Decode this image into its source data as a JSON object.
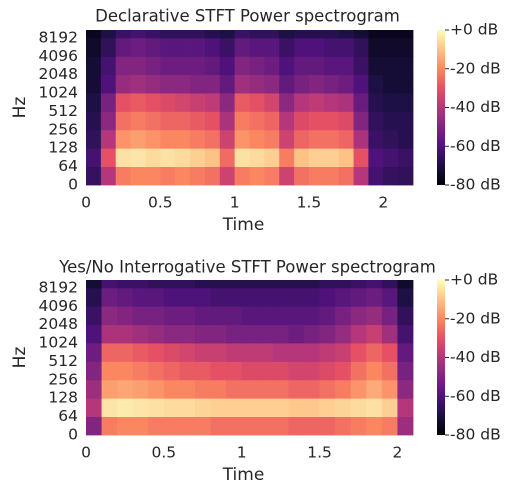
{
  "chart_data": [
    {
      "type": "spectrogram",
      "title": "Declarative STFT Power spectrogram",
      "xlabel": "Time",
      "ylabel": "Hz",
      "xlim": [
        0,
        2.2
      ],
      "xticks": [
        0,
        0.5,
        1,
        1.5,
        2
      ],
      "ylim": [
        0,
        11025
      ],
      "yticks": [
        0,
        64,
        128,
        256,
        512,
        1024,
        2048,
        4096,
        8192
      ],
      "yscale": "symlog",
      "linthresh": 64,
      "time_edges": [
        0,
        0.1,
        0.2,
        0.3,
        0.4,
        0.5,
        0.6,
        0.7,
        0.8,
        0.9,
        1,
        1.1,
        1.2,
        1.3,
        1.4,
        1.5,
        1.6,
        1.7,
        1.8,
        1.9,
        2,
        2.1,
        2.2
      ],
      "freq_edges": [
        0,
        64,
        128,
        256,
        512,
        1024,
        2048,
        4096,
        8192,
        11025
      ],
      "z": [
        [
          -65,
          -40,
          -22,
          -20,
          -20,
          -22,
          -20,
          -22,
          -24,
          -35,
          -22,
          -20,
          -22,
          -35,
          -24,
          -22,
          -22,
          -24,
          -40,
          -62,
          -65,
          -66
        ],
        [
          -62,
          -30,
          -5,
          -4,
          -6,
          -5,
          -6,
          -8,
          -10,
          -25,
          -5,
          -6,
          -8,
          -22,
          -10,
          -8,
          -8,
          -10,
          -30,
          -60,
          -62,
          -64
        ],
        [
          -66,
          -40,
          -18,
          -16,
          -18,
          -20,
          -20,
          -22,
          -24,
          -35,
          -18,
          -20,
          -22,
          -35,
          -26,
          -24,
          -24,
          -26,
          -42,
          -64,
          -66,
          -68
        ],
        [
          -68,
          -48,
          -24,
          -22,
          -24,
          -26,
          -26,
          -28,
          -30,
          -42,
          -22,
          -24,
          -26,
          -40,
          -32,
          -30,
          -30,
          -32,
          -50,
          -66,
          -68,
          -68
        ],
        [
          -70,
          -52,
          -30,
          -28,
          -30,
          -32,
          -34,
          -36,
          -38,
          -48,
          -28,
          -30,
          -34,
          -48,
          -40,
          -38,
          -40,
          -42,
          -55,
          -68,
          -70,
          -70
        ],
        [
          -72,
          -60,
          -46,
          -44,
          -46,
          -48,
          -48,
          -50,
          -50,
          -56,
          -44,
          -46,
          -48,
          -56,
          -52,
          -50,
          -52,
          -54,
          -60,
          -70,
          -72,
          -72
        ],
        [
          -72,
          -62,
          -50,
          -50,
          -52,
          -54,
          -54,
          -54,
          -56,
          -60,
          -50,
          -52,
          -54,
          -60,
          -56,
          -56,
          -58,
          -58,
          -64,
          -72,
          -72,
          -72
        ],
        [
          -74,
          -66,
          -56,
          -54,
          -56,
          -58,
          -58,
          -58,
          -60,
          -64,
          -56,
          -58,
          -58,
          -64,
          -60,
          -60,
          -62,
          -62,
          -66,
          -74,
          -74,
          -74
        ],
        [
          -76,
          -70,
          -64,
          -62,
          -64,
          -66,
          -66,
          -66,
          -68,
          -70,
          -64,
          -66,
          -66,
          -70,
          -68,
          -68,
          -68,
          -70,
          -72,
          -76,
          -76,
          -76
        ]
      ],
      "clim": [
        -80,
        0
      ],
      "colorbar_ticks": [
        {
          "value": 0,
          "label": "+0 dB"
        },
        {
          "value": -20,
          "label": "-20 dB"
        },
        {
          "value": -40,
          "label": "-40 dB"
        },
        {
          "value": -60,
          "label": "-60 dB"
        },
        {
          "value": -80,
          "label": "-80 dB"
        }
      ],
      "colormap": [
        "#000004",
        "#1c1044",
        "#4f127b",
        "#812581",
        "#b5367a",
        "#e55064",
        "#fb8761",
        "#fec287",
        "#fcfdbf"
      ]
    },
    {
      "type": "spectrogram",
      "title": "Yes/No Interrogative STFT Power spectrogram",
      "xlabel": "Time",
      "ylabel": "Hz",
      "xlim": [
        0,
        2.1
      ],
      "xticks": [
        0,
        0.5,
        1,
        1.5,
        2
      ],
      "ylim": [
        0,
        11025
      ],
      "yticks": [
        0,
        64,
        128,
        256,
        512,
        1024,
        2048,
        4096,
        8192
      ],
      "yscale": "symlog",
      "linthresh": 64,
      "time_edges": [
        0,
        0.1,
        0.2,
        0.3,
        0.4,
        0.5,
        0.6,
        0.7,
        0.8,
        0.9,
        1,
        1.1,
        1.2,
        1.3,
        1.4,
        1.5,
        1.6,
        1.7,
        1.8,
        1.9,
        2,
        2.1
      ],
      "freq_edges": [
        0,
        64,
        128,
        256,
        512,
        1024,
        2048,
        4096,
        8192,
        11025
      ],
      "z": [
        [
          -50,
          -22,
          -20,
          -20,
          -22,
          -22,
          -22,
          -22,
          -24,
          -24,
          -24,
          -24,
          -24,
          -26,
          -26,
          -26,
          -24,
          -22,
          -20,
          -22,
          -45
        ],
        [
          -40,
          -4,
          -3,
          -4,
          -5,
          -6,
          -6,
          -7,
          -8,
          -8,
          -8,
          -8,
          -8,
          -9,
          -9,
          -8,
          -7,
          -6,
          -5,
          -8,
          -40
        ],
        [
          -45,
          -16,
          -15,
          -16,
          -18,
          -20,
          -20,
          -22,
          -22,
          -24,
          -24,
          -24,
          -24,
          -26,
          -26,
          -24,
          -22,
          -18,
          -14,
          -18,
          -48
        ],
        [
          -50,
          -20,
          -20,
          -22,
          -24,
          -26,
          -28,
          -28,
          -30,
          -30,
          -32,
          -32,
          -32,
          -34,
          -34,
          -32,
          -30,
          -24,
          -20,
          -24,
          -52
        ],
        [
          -54,
          -26,
          -26,
          -28,
          -30,
          -32,
          -34,
          -36,
          -36,
          -38,
          -38,
          -38,
          -40,
          -40,
          -40,
          -38,
          -36,
          -30,
          -26,
          -30,
          -56
        ],
        [
          -60,
          -42,
          -42,
          -44,
          -46,
          -48,
          -48,
          -50,
          -50,
          -52,
          -52,
          -52,
          -52,
          -54,
          -52,
          -50,
          -46,
          -40,
          -36,
          -44,
          -62
        ],
        [
          -64,
          -48,
          -50,
          -52,
          -52,
          -54,
          -54,
          -56,
          -56,
          -56,
          -58,
          -58,
          -58,
          -58,
          -58,
          -56,
          -52,
          -48,
          -46,
          -52,
          -66
        ],
        [
          -68,
          -54,
          -56,
          -58,
          -58,
          -60,
          -60,
          -60,
          -62,
          -62,
          -62,
          -62,
          -62,
          -62,
          -62,
          -60,
          -58,
          -56,
          -54,
          -58,
          -70
        ],
        [
          -72,
          -62,
          -64,
          -64,
          -66,
          -66,
          -66,
          -68,
          -68,
          -68,
          -68,
          -68,
          -68,
          -68,
          -68,
          -66,
          -66,
          -64,
          -62,
          -66,
          -74
        ]
      ],
      "clim": [
        -80,
        0
      ],
      "colorbar_ticks": [
        {
          "value": 0,
          "label": "+0 dB"
        },
        {
          "value": -20,
          "label": "-20 dB"
        },
        {
          "value": -40,
          "label": "-40 dB"
        },
        {
          "value": -60,
          "label": "-60 dB"
        },
        {
          "value": -80,
          "label": "-80 dB"
        }
      ],
      "colormap": [
        "#000004",
        "#1c1044",
        "#4f127b",
        "#812581",
        "#b5367a",
        "#e55064",
        "#fb8761",
        "#fec287",
        "#fcfdbf"
      ]
    }
  ]
}
